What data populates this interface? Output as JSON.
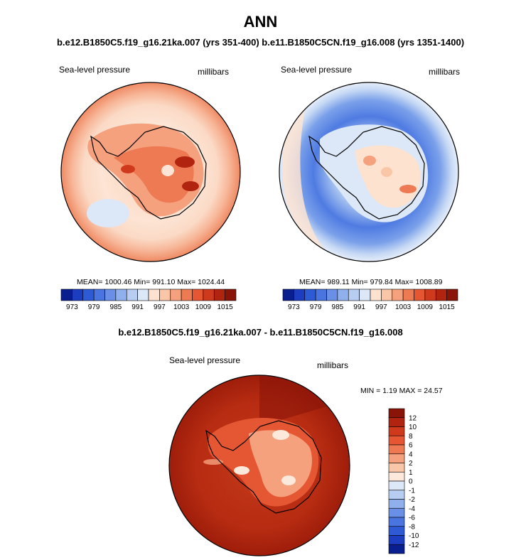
{
  "page": {
    "title": "ANN",
    "subtitle": "b.e12.B1850C5.f19_g16.21ka.007 (yrs 351-400) b.e11.B1850C5CN.f19_g16.008 (yrs 1351-1400)",
    "diff_title": "b.e12.B1850C5.f19_g16.21ka.007 - b.e11.B1850C5CN.f19_g16.008"
  },
  "chart_data": [
    {
      "type": "heatmap",
      "panel": "left",
      "variable_label": "Sea-level pressure",
      "units_label": "millibars",
      "stats_text": "MEAN= 1000.46  Min= 991.10  Max= 1024.44",
      "mean": 1000.46,
      "min": 991.1,
      "max": 1024.44,
      "colorbar": {
        "orientation": "horizontal",
        "levels": [
          970,
          973,
          976,
          979,
          982,
          985,
          988,
          991,
          994,
          997,
          1000,
          1003,
          1006,
          1009,
          1012,
          1015,
          1018
        ],
        "tick_labels": [
          "973",
          "979",
          "985",
          "991",
          "997",
          "1003",
          "1009",
          "1015"
        ],
        "colors": [
          "#0a1f8f",
          "#1c3dbf",
          "#2f5ad6",
          "#4a74e0",
          "#6a8fe6",
          "#8fb0ec",
          "#b7cdf2",
          "#dce8f8",
          "#fde2cf",
          "#f9c6a8",
          "#f5a17d",
          "#ee7a54",
          "#e55633",
          "#d03a1c",
          "#b02410",
          "#8a1408"
        ]
      }
    },
    {
      "type": "heatmap",
      "panel": "right",
      "variable_label": "Sea-level pressure",
      "units_label": "millibars",
      "stats_text": "MEAN= 989.11  Min= 979.84  Max= 1008.89",
      "mean": 989.11,
      "min": 979.84,
      "max": 1008.89,
      "colorbar": {
        "orientation": "horizontal",
        "levels": [
          970,
          973,
          976,
          979,
          982,
          985,
          988,
          991,
          994,
          997,
          1000,
          1003,
          1006,
          1009,
          1012,
          1015,
          1018
        ],
        "tick_labels": [
          "973",
          "979",
          "985",
          "991",
          "997",
          "1003",
          "1009",
          "1015"
        ],
        "colors": [
          "#0a1f8f",
          "#1c3dbf",
          "#2f5ad6",
          "#4a74e0",
          "#6a8fe6",
          "#8fb0ec",
          "#b7cdf2",
          "#dce8f8",
          "#fde2cf",
          "#f9c6a8",
          "#f5a17d",
          "#ee7a54",
          "#e55633",
          "#d03a1c",
          "#b02410",
          "#8a1408"
        ]
      }
    },
    {
      "type": "heatmap",
      "panel": "difference",
      "variable_label": "Sea-level pressure",
      "units_label": "millibars",
      "stats_text": "MIN =   1.19 MAX =  24.57",
      "min": 1.19,
      "max": 24.57,
      "colorbar": {
        "orientation": "vertical",
        "levels": [
          -14,
          -12,
          -10,
          -8,
          -6,
          -4,
          -2,
          -1,
          0,
          1,
          2,
          4,
          6,
          8,
          10,
          12,
          14
        ],
        "tick_labels": [
          "12",
          "10",
          "8",
          "6",
          "4",
          "2",
          "1",
          "0",
          "-1",
          "-2",
          "-4",
          "-6",
          "-8",
          "-10",
          "-12"
        ],
        "colors": [
          "#0a1f8f",
          "#1c3dbf",
          "#2f5ad6",
          "#4a74e0",
          "#6a8fe6",
          "#8fb0ec",
          "#b7cdf2",
          "#dce8f8",
          "#fde9dc",
          "#f9c6a8",
          "#f5a17d",
          "#ee7a54",
          "#e55633",
          "#d03a1c",
          "#b02410",
          "#8a1408"
        ]
      }
    }
  ]
}
